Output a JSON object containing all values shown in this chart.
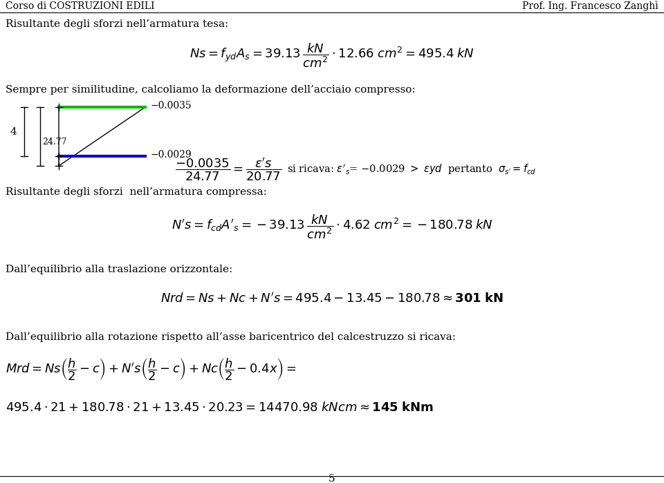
{
  "header_left": "Corso di COSTRUZIONI EDILI",
  "header_right": "Prof. Ing. Francesco Zanghì",
  "page_number": "5",
  "bg_color": "#ffffff",
  "green_color": "#00bb00",
  "blue_color": "#0000dd"
}
